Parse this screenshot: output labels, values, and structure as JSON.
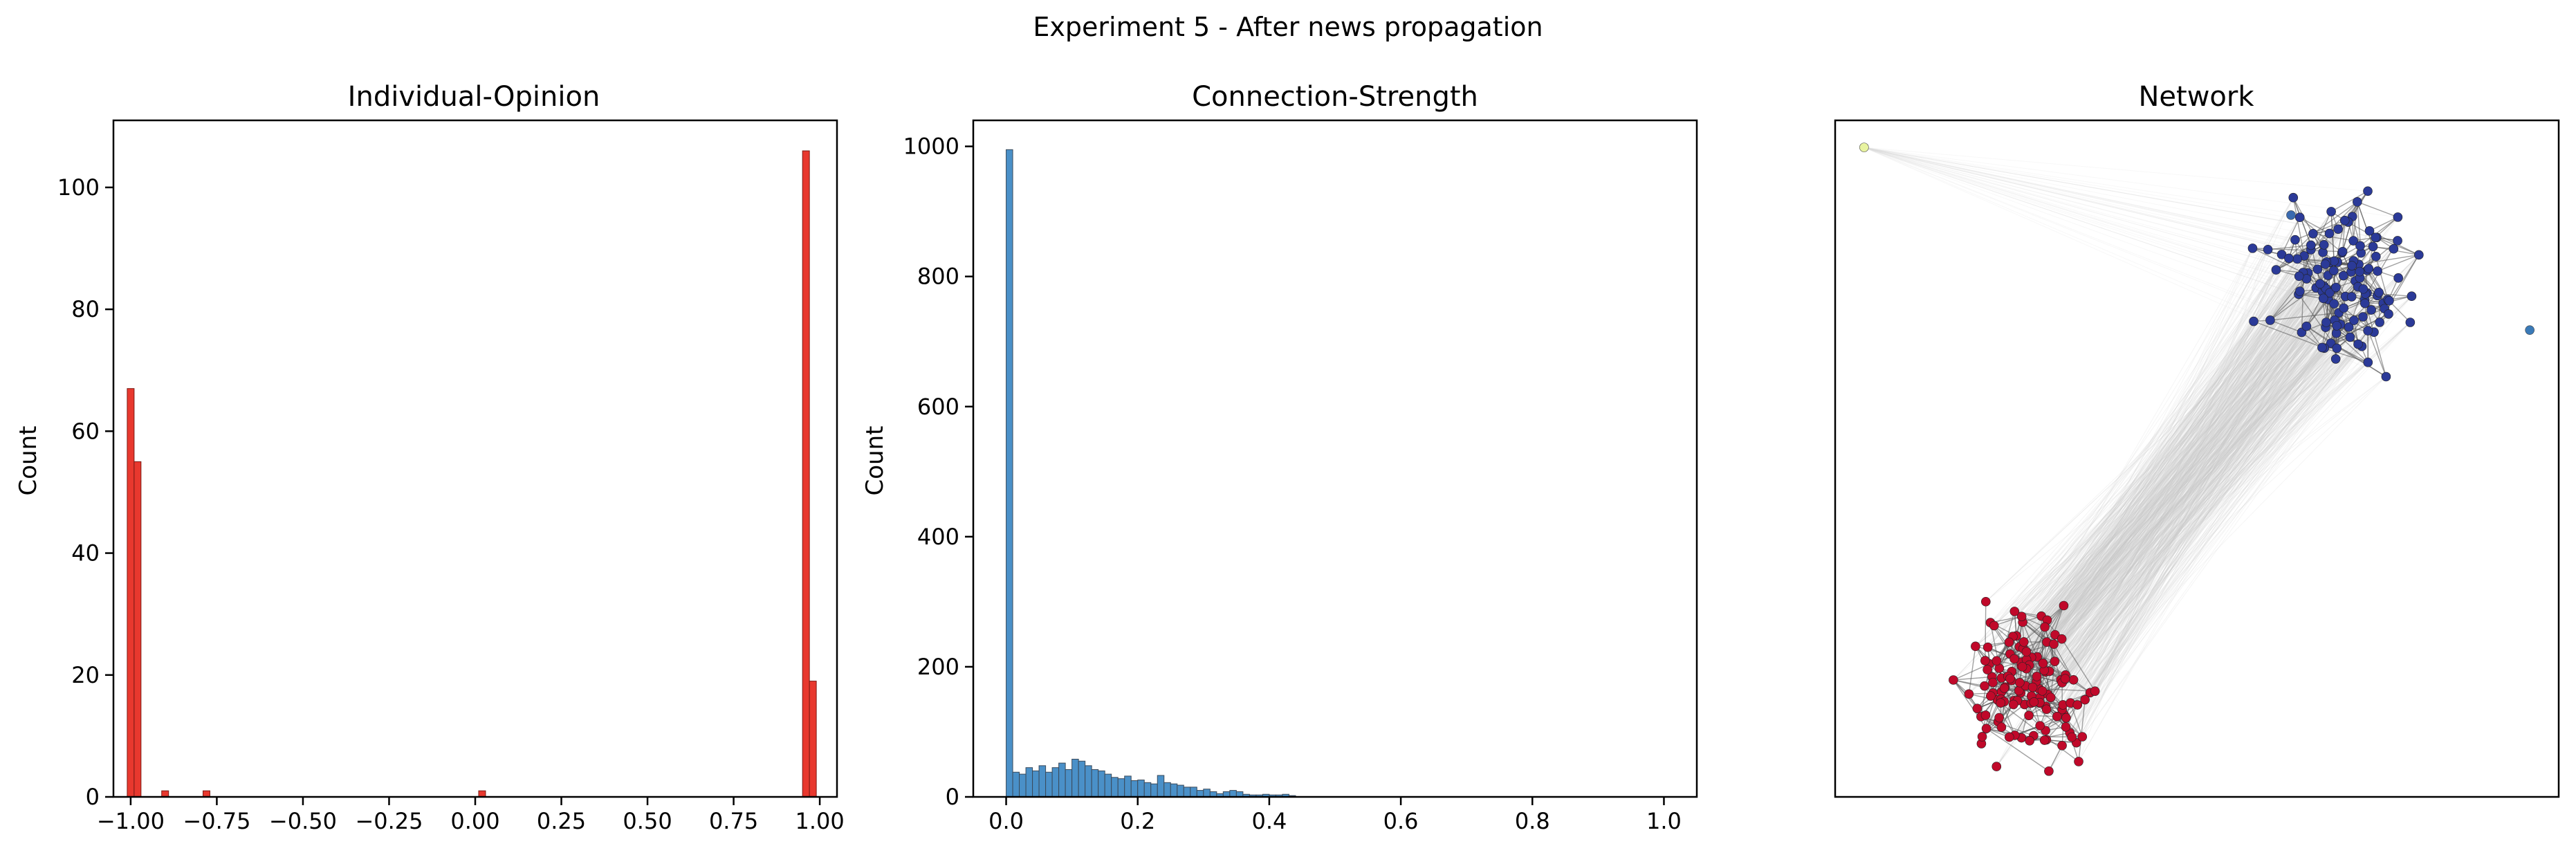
{
  "suptitle": "Experiment 5 - After news propagation",
  "chart_data": [
    {
      "type": "bar",
      "title": "Individual-Opinion",
      "xlabel": "",
      "ylabel": "Count",
      "xlim": [
        -1.05,
        1.05
      ],
      "ylim": [
        0,
        111
      ],
      "xticks": [
        -1.0,
        -0.75,
        -0.5,
        -0.25,
        0.0,
        0.25,
        0.5,
        0.75,
        1.0
      ],
      "xtick_labels": [
        "−1.00",
        "−0.75",
        "−0.50",
        "−0.25",
        "0.00",
        "0.25",
        "0.50",
        "0.75",
        "1.00"
      ],
      "yticks": [
        0,
        20,
        40,
        60,
        80,
        100
      ],
      "ytick_labels": [
        "0",
        "20",
        "40",
        "60",
        "80",
        "100"
      ],
      "color": "#e8382e",
      "bin_width": 0.02,
      "bins": [
        {
          "x": -1.0,
          "count": 67
        },
        {
          "x": -0.98,
          "count": 55
        },
        {
          "x": -0.9,
          "count": 1
        },
        {
          "x": -0.78,
          "count": 1
        },
        {
          "x": 0.02,
          "count": 1
        },
        {
          "x": 0.96,
          "count": 106
        },
        {
          "x": 0.98,
          "count": 19
        }
      ]
    },
    {
      "type": "bar",
      "title": "Connection-Strength",
      "xlabel": "",
      "ylabel": "Count",
      "xlim": [
        -0.05,
        1.05
      ],
      "ylim": [
        0,
        1040
      ],
      "xticks": [
        0.0,
        0.2,
        0.4,
        0.6,
        0.8,
        1.0
      ],
      "xtick_labels": [
        "0.0",
        "0.2",
        "0.4",
        "0.6",
        "0.8",
        "1.0"
      ],
      "yticks": [
        0,
        200,
        400,
        600,
        800,
        1000
      ],
      "ytick_labels": [
        "0",
        "200",
        "400",
        "600",
        "800",
        "1000"
      ],
      "color": "#4a90c8",
      "bin_width": 0.01,
      "bin_start": 0.0,
      "counts": [
        995,
        38,
        35,
        45,
        40,
        48,
        38,
        45,
        52,
        42,
        58,
        55,
        48,
        42,
        40,
        35,
        30,
        28,
        32,
        25,
        26,
        22,
        20,
        33,
        22,
        20,
        18,
        15,
        15,
        10,
        12,
        8,
        5,
        8,
        10,
        8,
        4,
        3,
        3,
        4,
        3,
        3,
        4,
        2
      ]
    },
    {
      "type": "scatter",
      "title": "Network",
      "xlabel": "",
      "ylabel": "",
      "axes": "off",
      "communities": [
        {
          "color": "#2b3a98",
          "center": [
            0.7,
            0.76
          ],
          "spread": 0.055,
          "nodes": 120
        },
        {
          "color": "#c0092a",
          "center": [
            0.27,
            0.16
          ],
          "spread": 0.05,
          "nodes": 130
        }
      ],
      "outliers": [
        {
          "color": "#e8f3a0",
          "pos": [
            0.04,
            0.96
          ]
        },
        {
          "color": "#3a7ab8",
          "pos": [
            0.96,
            0.69
          ]
        },
        {
          "color": "#3a6ab0",
          "pos": [
            0.63,
            0.86
          ]
        }
      ]
    }
  ]
}
